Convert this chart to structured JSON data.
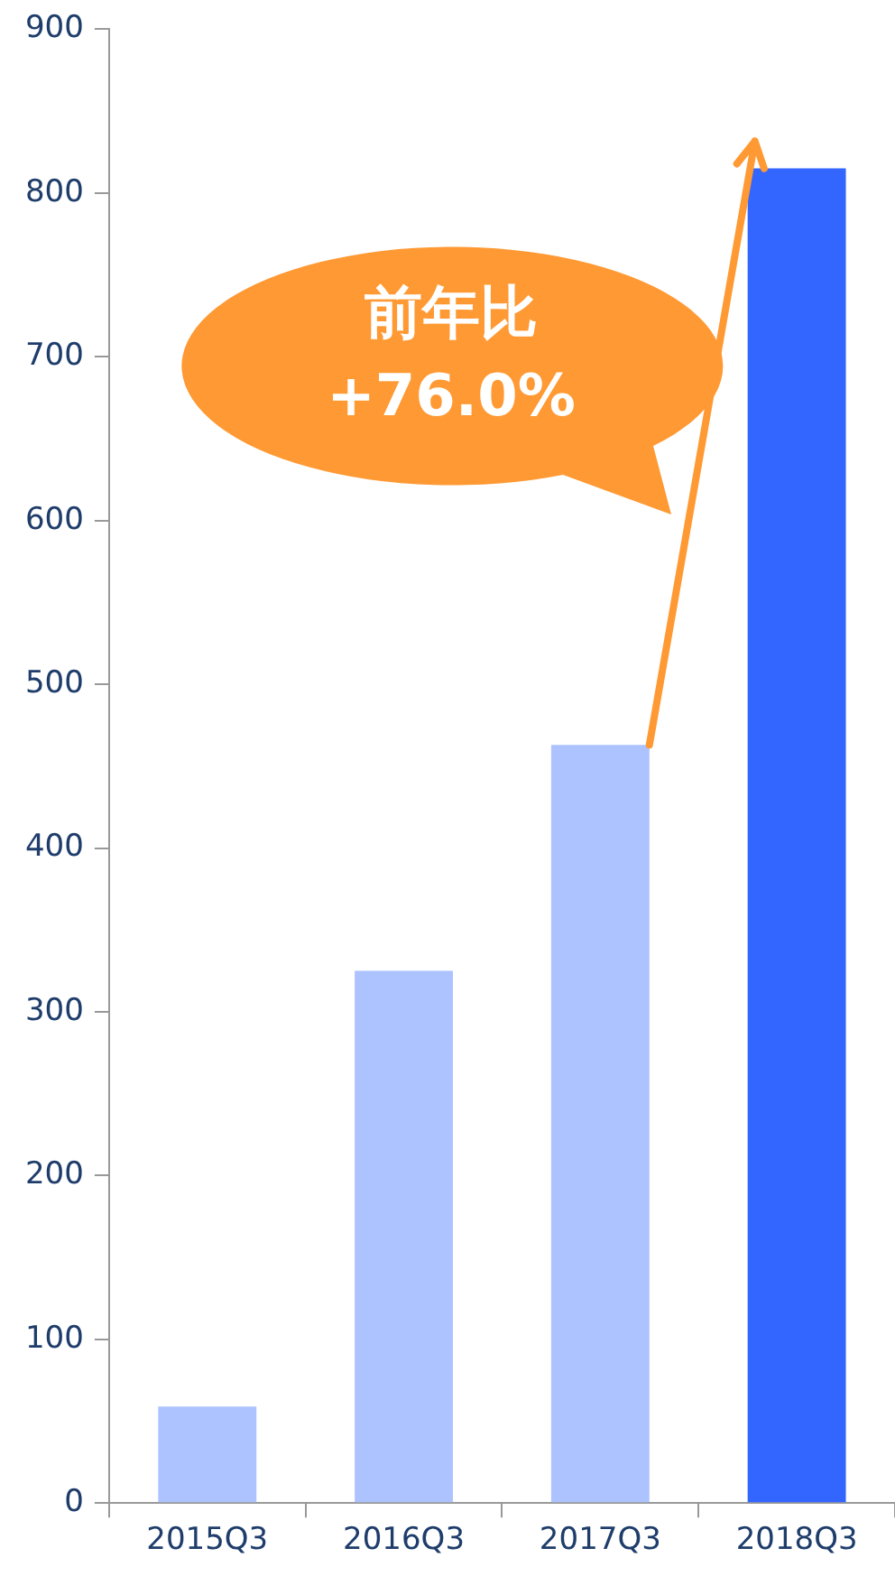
{
  "chart_data": {
    "type": "bar",
    "categories": [
      "2015Q3",
      "2016Q3",
      "2017Q3",
      "2018Q3"
    ],
    "values": [
      59,
      325,
      463,
      815
    ],
    "colors": [
      "#adc3ff",
      "#adc3ff",
      "#adc3ff",
      "#3366ff"
    ],
    "ylim": [
      0,
      900
    ],
    "yticks": [
      0,
      100,
      200,
      300,
      400,
      500,
      600,
      700,
      800,
      900
    ],
    "grid": false,
    "legend": false,
    "annotations": [
      "前年比\n+76.0%"
    ]
  }
}
